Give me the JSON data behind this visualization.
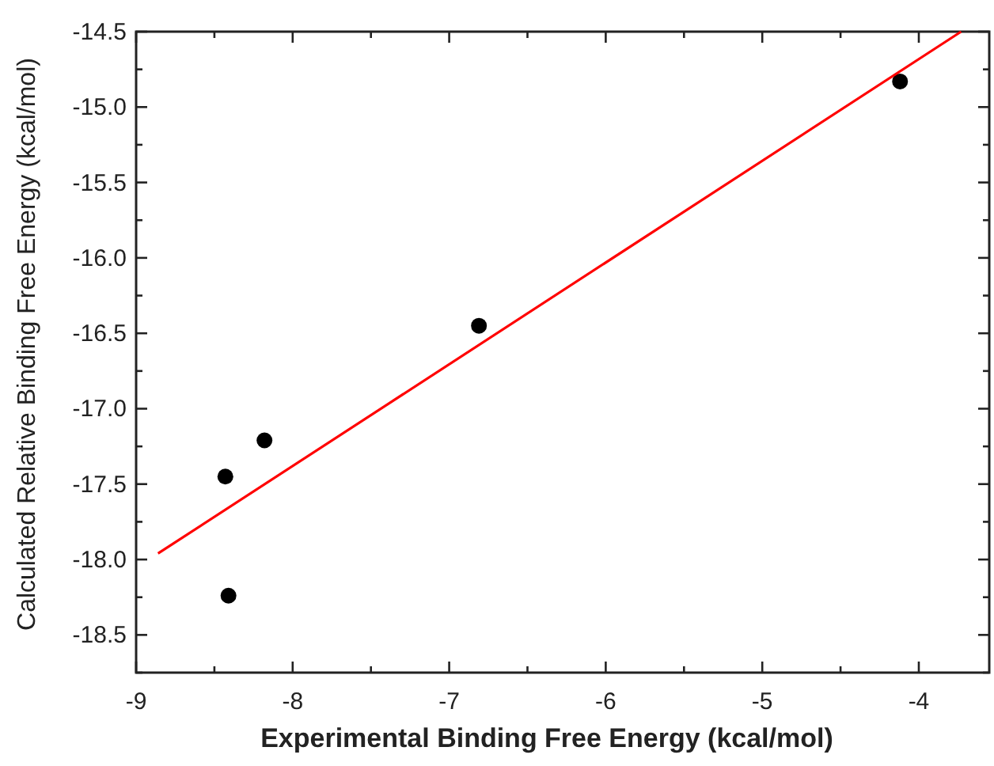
{
  "chart_data": {
    "type": "scatter",
    "xlabel": "Experimental Binding Free Energy (kcal/mol)",
    "ylabel": "Calculated Relative Binding Free Energy (kcal/mol)",
    "xlim": [
      -9,
      -3.55
    ],
    "ylim": [
      -18.75,
      -14.5
    ],
    "xticks": [
      -9,
      {
        "value": -8.5,
        "label": null
      },
      -8,
      {
        "value": -7.5,
        "label": null
      },
      -7,
      {
        "value": -6.5,
        "label": null
      },
      -6,
      {
        "value": -5.5,
        "label": null
      },
      -5,
      {
        "value": -4.5,
        "label": null
      },
      -4
    ],
    "yticks": [
      {
        "value": -18.75,
        "label": null
      },
      -18.5,
      {
        "value": -18.25,
        "label": null
      },
      {
        "value": -18,
        "label": "-18.0"
      },
      {
        "value": -17.75,
        "label": null
      },
      -17.5,
      {
        "value": -17.25,
        "label": null
      },
      {
        "value": -17,
        "label": "-17.0"
      },
      {
        "value": -16.75,
        "label": null
      },
      -16.5,
      {
        "value": -16.25,
        "label": null
      },
      {
        "value": -16,
        "label": "-16.0"
      },
      {
        "value": -15.75,
        "label": null
      },
      -15.5,
      {
        "value": -15.25,
        "label": null
      },
      {
        "value": -15,
        "label": "-15.0"
      },
      {
        "value": -14.75,
        "label": null
      },
      -14.5
    ],
    "marker": "circle",
    "grid": false,
    "series": [
      {
        "color": "#000000",
        "x": [
          -4.12,
          -6.81,
          -8.18,
          -8.43,
          -8.41
        ],
        "values": [
          -14.83,
          -16.45,
          -17.21,
          -17.45,
          -18.24
        ]
      },
      {
        "type": "line",
        "color": "#ff0000",
        "marker": "none",
        "x": [
          -8.86,
          -3.73
        ],
        "values": [
          -17.96,
          -14.5
        ]
      }
    ]
  }
}
